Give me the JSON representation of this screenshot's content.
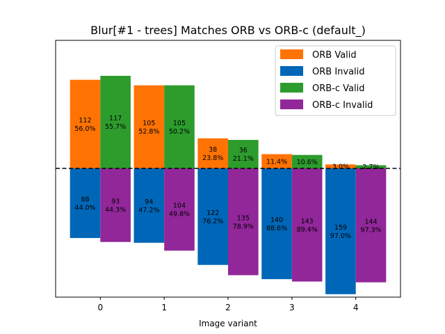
{
  "chart_data": {
    "type": "bar",
    "title": "Blur[#1 - trees] Matches ORB vs ORB-c (default_)",
    "xlabel": "Image variant",
    "ylabel": "",
    "categories": [
      "0",
      "1",
      "2",
      "3",
      "4"
    ],
    "legend_position": "top-right",
    "grid": false,
    "zero_line": "dashed",
    "series": [
      {
        "name": "ORB Valid",
        "color": "#ff7304",
        "direction": "up",
        "values": [
          112,
          105,
          38,
          18,
          5
        ],
        "labels": [
          [
            "112",
            "56.0%"
          ],
          [
            "105",
            "52.8%"
          ],
          [
            "38",
            "23.8%"
          ],
          [
            "",
            "11.4%"
          ],
          [
            "",
            "3.0%"
          ]
        ]
      },
      {
        "name": "ORB Invalid",
        "color": "#0067b8",
        "direction": "down",
        "values": [
          88,
          94,
          122,
          140,
          159
        ],
        "labels": [
          [
            "88",
            "44.0%"
          ],
          [
            "94",
            "47.2%"
          ],
          [
            "122",
            "76.2%"
          ],
          [
            "140",
            "88.6%"
          ],
          [
            "159",
            "97.0%"
          ]
        ]
      },
      {
        "name": "ORB-c Valid",
        "color": "#2d9c2d",
        "direction": "up",
        "values": [
          117,
          105,
          36,
          17,
          4
        ],
        "labels": [
          [
            "117",
            "55.7%"
          ],
          [
            "105",
            "50.2%"
          ],
          [
            "36",
            "21.1%"
          ],
          [
            "",
            "10.6%"
          ],
          [
            "",
            "2.7%"
          ]
        ]
      },
      {
        "name": "ORB-c Invalid",
        "color": "#92279a",
        "direction": "down",
        "values": [
          93,
          104,
          135,
          143,
          144
        ],
        "labels": [
          [
            "93",
            "44.3%"
          ],
          [
            "104",
            "49.8%"
          ],
          [
            "135",
            "78.9%"
          ],
          [
            "143",
            "89.4%"
          ],
          [
            "144",
            "97.3%"
          ]
        ]
      }
    ],
    "ylim": [
      -160,
      160
    ],
    "xlim": [
      -0.7,
      4.7
    ]
  }
}
